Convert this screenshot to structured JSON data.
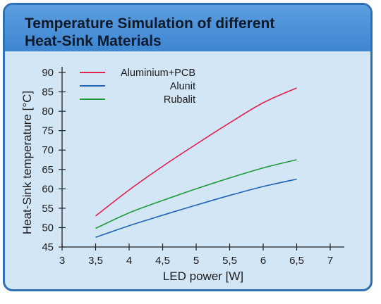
{
  "header": {
    "title": "Temperature Simulation of different\nHeat-Sink Materials"
  },
  "chart_data": {
    "type": "line",
    "title": "Temperature Simulation of different Heat-Sink Materials",
    "xlabel": "LED power [W]",
    "ylabel": "Heat-Sink temperature [°C]",
    "xlim": [
      3,
      7
    ],
    "ylim": [
      45,
      90
    ],
    "x_ticks": [
      "3",
      "3,5",
      "4",
      "4,5",
      "5",
      "5,5",
      "6",
      "6,5",
      "7"
    ],
    "y_ticks": [
      "45",
      "50",
      "55",
      "60",
      "65",
      "70",
      "75",
      "80",
      "85",
      "90"
    ],
    "grid": false,
    "legend_position": "top-center",
    "series": [
      {
        "name": "Aluminium+PCB",
        "color": "#e0204f",
        "x": [
          3.5,
          4,
          4.5,
          5,
          5.5,
          6,
          6.5
        ],
        "y": [
          53.0,
          59.7,
          65.8,
          71.5,
          77.0,
          82.2,
          86.0
        ]
      },
      {
        "name": "Alunit",
        "color": "#1f63b5",
        "x": [
          3.5,
          4,
          4.5,
          5,
          5.5,
          6,
          6.5
        ],
        "y": [
          47.5,
          50.5,
          53.2,
          55.8,
          58.3,
          60.6,
          62.5
        ]
      },
      {
        "name": "Rubalit",
        "color": "#1e9a3a",
        "x": [
          3.5,
          4,
          4.5,
          5,
          5.5,
          6,
          6.5
        ],
        "y": [
          49.8,
          53.8,
          57.0,
          60.0,
          62.8,
          65.4,
          67.5
        ]
      }
    ]
  }
}
